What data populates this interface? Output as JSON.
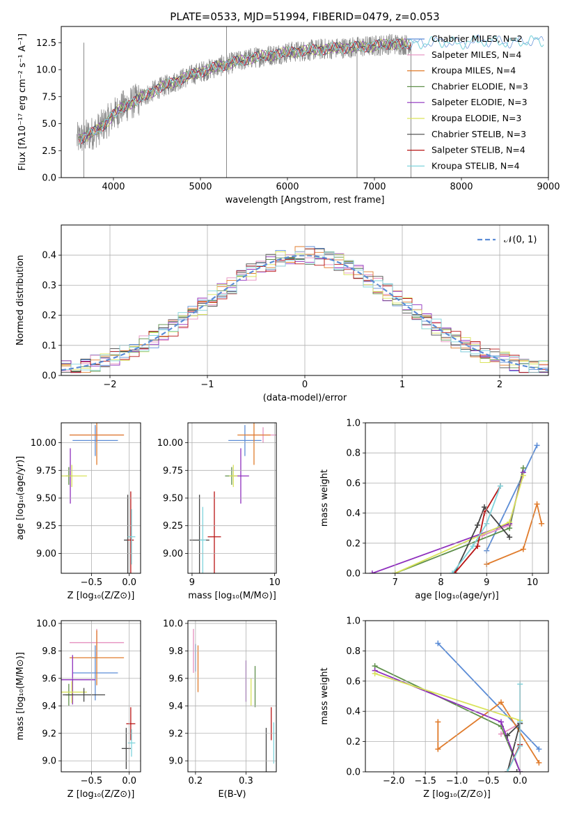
{
  "figure_title": "PLATE=0533, MJD=51994, FIBERID=0479, z=0.053",
  "chart_data": [
    {
      "id": "spectrum",
      "type": "line",
      "title": "PLATE=0533, MJD=51994, FIBERID=0479, z=0.053",
      "xlabel": "wavelength [Angstrom, rest frame]",
      "ylabel": "Flux [fλ10⁻¹⁷ erg cm⁻² s⁻¹ A⁻¹]",
      "xlim": [
        3400,
        9000
      ],
      "ylim": [
        0,
        14
      ],
      "xticks": [
        4000,
        5000,
        6000,
        7000,
        8000,
        9000
      ],
      "yticks": [
        0.0,
        2.5,
        5.0,
        7.5,
        10.0,
        12.5
      ],
      "legend_position": "right",
      "series": [
        {
          "name": "Chabrier MILES, N_SSP=2",
          "color": "#5b8cd6"
        },
        {
          "name": "Salpeter MILES, N_SSP=4",
          "color": "#e58fbf"
        },
        {
          "name": "Kroupa MILES, N_SSP=4",
          "color": "#e07b2b"
        },
        {
          "name": "Chabrier ELODIE, N_SSP=3",
          "color": "#5e8f4a"
        },
        {
          "name": "Salpeter ELODIE, N_SSP=3",
          "color": "#8e2ebd"
        },
        {
          "name": "Kroupa ELODIE, N_SSP=3",
          "color": "#d9e35a"
        },
        {
          "name": "Chabrier STELIB, N_SSP=3",
          "color": "#444444"
        },
        {
          "name": "Salpeter STELIB, N_SSP=4",
          "color": "#b81414"
        },
        {
          "name": "Kroupa STELIB, N_SSP=4",
          "color": "#7fd4dc"
        }
      ],
      "continuum": {
        "x": [
          3600,
          3700,
          3800,
          3900,
          4000,
          4100,
          4200,
          4300,
          4500,
          4800,
          5000,
          5300,
          5600,
          6000,
          6400,
          6800,
          7000,
          7200,
          7400,
          7600,
          7800,
          8000,
          8200,
          8400,
          8600,
          8800,
          8950
        ],
        "y": [
          3.6,
          3.9,
          4.3,
          5.0,
          5.8,
          6.5,
          6.9,
          7.3,
          8.2,
          9.2,
          9.8,
          10.5,
          11.1,
          11.6,
          11.9,
          12.1,
          12.2,
          12.4,
          12.3,
          12.5,
          12.6,
          12.4,
          12.7,
          12.6,
          12.5,
          12.7,
          12.6
        ]
      },
      "observed_range": [
        3580,
        7420
      ]
    },
    {
      "id": "residuals",
      "type": "bar",
      "xlabel": "(data-model)/error",
      "ylabel": "Normed distribution",
      "xlim": [
        -2.5,
        2.5
      ],
      "ylim": [
        0,
        0.5
      ],
      "xticks": [
        -2,
        -1,
        0,
        1,
        2
      ],
      "yticks": [
        0.0,
        0.1,
        0.2,
        0.3,
        0.4
      ],
      "bin_width": 0.1,
      "legend": [
        "𝒩(0, 1)"
      ],
      "legend_position": "top-right",
      "gaussian": {
        "mean": 0,
        "sigma": 1,
        "color": "#5b8cd6"
      }
    },
    {
      "id": "age-vs-Z",
      "type": "scatter",
      "xlabel": "Z [log₁₀(Z/Z⊙)]",
      "ylabel": "age  [log₁₀(age/yr)]",
      "xlim": [
        -0.9,
        0.15
      ],
      "ylim": [
        8.82,
        10.18
      ],
      "xticks": [
        -0.5,
        0.0
      ],
      "yticks": [
        9.0,
        9.25,
        9.5,
        9.75,
        10.0
      ],
      "points": [
        {
          "x": -0.45,
          "y": 10.02,
          "xerr": 0.3,
          "yerr": 0.14,
          "color": "#5b8cd6"
        },
        {
          "x": -0.43,
          "y": 10.07,
          "xerr": 0.36,
          "yerr": 0.07,
          "color": "#e58fbf"
        },
        {
          "x": -0.43,
          "y": 10.07,
          "xerr": 0.36,
          "yerr": 0.27,
          "color": "#e07b2b"
        },
        {
          "x": -0.8,
          "y": 9.7,
          "xerr": 0.04,
          "yerr": 0.08,
          "color": "#5e8f4a"
        },
        {
          "x": -0.78,
          "y": 9.7,
          "xerr": 0.03,
          "yerr": 0.25,
          "color": "#8e2ebd"
        },
        {
          "x": -0.76,
          "y": 9.7,
          "xerr": 0.2,
          "yerr": 0.1,
          "color": "#d9e35a"
        },
        {
          "x": -0.02,
          "y": 9.12,
          "xerr": 0.05,
          "yerr": 0.41,
          "color": "#444444"
        },
        {
          "x": 0.02,
          "y": 9.12,
          "xerr": 0.04,
          "yerr": 0.44,
          "color": "#b81414"
        },
        {
          "x": 0.03,
          "y": 9.15,
          "xerr": 0.05,
          "yerr": 0.25,
          "color": "#7fd4dc"
        }
      ]
    },
    {
      "id": "age-vs-mass",
      "type": "scatter",
      "xlabel": "mass [log₁₀(M/M⊙)]",
      "ylabel": "",
      "xlim": [
        8.95,
        10.02
      ],
      "ylim": [
        8.82,
        10.18
      ],
      "xticks": [
        9,
        10
      ],
      "yticks": [
        9.0,
        9.25,
        9.5,
        9.75,
        10.0
      ],
      "points": [
        {
          "x": 9.64,
          "y": 10.02,
          "xerr": 0.2,
          "yerr": 0.14,
          "color": "#5b8cd6"
        },
        {
          "x": 9.86,
          "y": 10.07,
          "xerr": 0.2,
          "yerr": 0.07,
          "color": "#e58fbf"
        },
        {
          "x": 9.75,
          "y": 10.07,
          "xerr": 0.2,
          "yerr": 0.27,
          "color": "#e07b2b"
        },
        {
          "x": 9.48,
          "y": 9.7,
          "xerr": 0.08,
          "yerr": 0.08,
          "color": "#5e8f4a"
        },
        {
          "x": 9.59,
          "y": 9.7,
          "xerr": 0.1,
          "yerr": 0.25,
          "color": "#8e2ebd"
        },
        {
          "x": 9.5,
          "y": 9.7,
          "xerr": 0.05,
          "yerr": 0.1,
          "color": "#d9e35a"
        },
        {
          "x": 9.09,
          "y": 9.12,
          "xerr": 0.12,
          "yerr": 0.41,
          "color": "#444444"
        },
        {
          "x": 9.27,
          "y": 9.15,
          "xerr": 0.08,
          "yerr": 0.41,
          "color": "#b81414"
        },
        {
          "x": 9.13,
          "y": 9.12,
          "xerr": 0.04,
          "yerr": 0.3,
          "color": "#7fd4dc"
        }
      ]
    },
    {
      "id": "mass-weight-vs-age",
      "type": "line",
      "xlabel": "age  [log₁₀(age/yr)]",
      "ylabel": "mass weight",
      "xlim": [
        6.35,
        10.35
      ],
      "ylim": [
        0,
        1
      ],
      "xticks": [
        7,
        8,
        9,
        10
      ],
      "yticks": [
        0.0,
        0.2,
        0.4,
        0.6,
        0.8,
        1.0
      ],
      "series": [
        {
          "name": "Chabrier MILES",
          "color": "#5b8cd6",
          "x": [
            9.0,
            10.1
          ],
          "y": [
            0.15,
            0.85
          ]
        },
        {
          "name": "Salpeter MILES",
          "color": "#e58fbf",
          "x": [
            8.9,
            9.5
          ],
          "y": [
            0.25,
            0.32
          ]
        },
        {
          "name": "Kroupa MILES",
          "color": "#e07b2b",
          "x": [
            9.0,
            9.8,
            10.1,
            10.2
          ],
          "y": [
            0.06,
            0.16,
            0.46,
            0.33
          ]
        },
        {
          "name": "Chabrier ELODIE",
          "color": "#5e8f4a",
          "x": [
            7.0,
            9.5,
            9.8
          ],
          "y": [
            0.0,
            0.3,
            0.7
          ]
        },
        {
          "name": "Salpeter ELODIE",
          "color": "#8e2ebd",
          "x": [
            6.5,
            9.5,
            9.8
          ],
          "y": [
            0.0,
            0.33,
            0.67
          ]
        },
        {
          "name": "Kroupa ELODIE",
          "color": "#d9e35a",
          "x": [
            7.0,
            9.5,
            9.8
          ],
          "y": [
            0.0,
            0.34,
            0.65
          ]
        },
        {
          "name": "Chabrier STELIB",
          "color": "#444444",
          "x": [
            8.3,
            8.8,
            8.95,
            9.5
          ],
          "y": [
            0.0,
            0.32,
            0.44,
            0.24
          ]
        },
        {
          "name": "Salpeter STELIB",
          "color": "#b81414",
          "x": [
            8.3,
            8.8,
            8.95,
            9.3
          ],
          "y": [
            0.0,
            0.18,
            0.4,
            0.58
          ]
        },
        {
          "name": "Kroupa STELIB",
          "color": "#7fd4dc",
          "x": [
            8.25,
            8.7,
            9.0,
            9.3
          ],
          "y": [
            0.0,
            0.18,
            0.33,
            0.58
          ]
        }
      ]
    },
    {
      "id": "mass-vs-Z",
      "type": "scatter",
      "xlabel": "Z [log₁₀(Z/Z⊙)]",
      "ylabel": "mass [log₁₀(M/M⊙)]",
      "xlim": [
        -0.9,
        0.15
      ],
      "ylim": [
        8.92,
        10.02
      ],
      "xticks": [
        -0.5,
        0.0
      ],
      "yticks": [
        9.0,
        9.2,
        9.4,
        9.6,
        9.8,
        10.0
      ],
      "points": [
        {
          "x": -0.45,
          "y": 9.64,
          "xerr": 0.3,
          "yerr": 0.2,
          "color": "#5b8cd6"
        },
        {
          "x": -0.43,
          "y": 9.86,
          "xerr": 0.36,
          "yerr": 0.1,
          "color": "#e58fbf"
        },
        {
          "x": -0.43,
          "y": 9.75,
          "xerr": 0.36,
          "yerr": 0.2,
          "color": "#e07b2b"
        },
        {
          "x": -0.8,
          "y": 9.48,
          "xerr": 0.04,
          "yerr": 0.08,
          "color": "#5e8f4a"
        },
        {
          "x": -0.75,
          "y": 9.59,
          "xerr": 0.3,
          "yerr": 0.18,
          "color": "#8e2ebd"
        },
        {
          "x": -0.76,
          "y": 9.5,
          "xerr": 0.2,
          "yerr": 0.08,
          "color": "#d9e35a"
        },
        {
          "x": -0.6,
          "y": 9.48,
          "xerr": 0.28,
          "yerr": 0.05,
          "color": "#444444"
        },
        {
          "x": -0.04,
          "y": 9.09,
          "xerr": 0.06,
          "yerr": 0.15,
          "color": "#444444"
        },
        {
          "x": 0.02,
          "y": 9.27,
          "xerr": 0.06,
          "yerr": 0.12,
          "color": "#b81414"
        },
        {
          "x": 0.03,
          "y": 9.13,
          "xerr": 0.05,
          "yerr": 0.1,
          "color": "#7fd4dc"
        }
      ]
    },
    {
      "id": "mass-vs-ebv",
      "type": "scatter",
      "xlabel": "E(B-V)",
      "ylabel": "",
      "xlim": [
        0.185,
        0.36
      ],
      "ylim": [
        8.92,
        10.02
      ],
      "xticks": [
        0.2,
        0.3
      ],
      "yticks": [
        9.0,
        9.2,
        9.4,
        9.6,
        9.8,
        10.0
      ],
      "points": [
        {
          "x": 0.196,
          "y": 9.8,
          "xerr": 0,
          "yerr": 0.16,
          "color": "#e58fbf"
        },
        {
          "x": 0.205,
          "y": 9.67,
          "xerr": 0,
          "yerr": 0.17,
          "color": "#e07b2b"
        },
        {
          "x": 0.2,
          "y": 9.75,
          "xerr": 0,
          "yerr": 0.1,
          "color": "#5b8cd6"
        },
        {
          "x": 0.3,
          "y": 9.58,
          "xerr": 0,
          "yerr": 0.15,
          "color": "#8e2ebd"
        },
        {
          "x": 0.31,
          "y": 9.5,
          "xerr": 0,
          "yerr": 0.1,
          "color": "#d9e35a"
        },
        {
          "x": 0.318,
          "y": 9.54,
          "xerr": 0,
          "yerr": 0.15,
          "color": "#5e8f4a"
        },
        {
          "x": 0.34,
          "y": 9.03,
          "xerr": 0,
          "yerr": 0.21,
          "color": "#444444"
        },
        {
          "x": 0.35,
          "y": 9.27,
          "xerr": 0,
          "yerr": 0.12,
          "color": "#b81414"
        },
        {
          "x": 0.355,
          "y": 9.13,
          "xerr": 0,
          "yerr": 0.15,
          "color": "#7fd4dc"
        }
      ]
    },
    {
      "id": "mass-weight-vs-Z",
      "type": "line",
      "xlabel": "Z [log₁₀(Z/Z⊙)]",
      "ylabel": "mass weight",
      "xlim": [
        -2.45,
        0.45
      ],
      "ylim": [
        0,
        1
      ],
      "xticks": [
        -2.0,
        -1.5,
        -1.0,
        -0.5,
        0.0
      ],
      "yticks": [
        0.0,
        0.2,
        0.4,
        0.6,
        0.8,
        1.0
      ],
      "series": [
        {
          "name": "Chabrier MILES",
          "color": "#5b8cd6",
          "x": [
            -1.3,
            0.3
          ],
          "y": [
            0.85,
            0.15
          ]
        },
        {
          "name": "Salpeter MILES",
          "color": "#e58fbf",
          "x": [
            -0.3,
            0.0
          ],
          "y": [
            0.25,
            0.32
          ]
        },
        {
          "name": "Kroupa MILES",
          "color": "#e07b2b",
          "x": [
            -1.3,
            -1.3,
            -0.3,
            0.3
          ],
          "y": [
            0.33,
            0.15,
            0.46,
            0.06
          ]
        },
        {
          "name": "Chabrier ELODIE",
          "color": "#5e8f4a",
          "x": [
            -2.3,
            -0.3,
            0.0
          ],
          "y": [
            0.7,
            0.3,
            0.0
          ]
        },
        {
          "name": "Salpeter ELODIE",
          "color": "#8e2ebd",
          "x": [
            -2.3,
            -0.3,
            0.0
          ],
          "y": [
            0.67,
            0.33,
            0.0
          ]
        },
        {
          "name": "Kroupa ELODIE",
          "color": "#d9e35a",
          "x": [
            -2.3,
            0.0
          ],
          "y": [
            0.65,
            0.34
          ]
        },
        {
          "name": "Chabrier STELIB",
          "color": "#444444",
          "x": [
            -0.2,
            0.0,
            -0.2,
            -0.05
          ],
          "y": [
            0.24,
            0.32,
            0.0,
            0.0
          ]
        },
        {
          "name": "Salpeter STELIB",
          "color": "#b81414",
          "x": [
            -0.2,
            0.0
          ],
          "y": [
            0.0,
            0.18
          ]
        },
        {
          "name": "Kroupa STELIB",
          "color": "#7fd4dc",
          "x": [
            -0.2,
            0.0,
            0.0,
            0.0
          ],
          "y": [
            0.0,
            0.17,
            0.58,
            0.33
          ]
        }
      ]
    }
  ]
}
